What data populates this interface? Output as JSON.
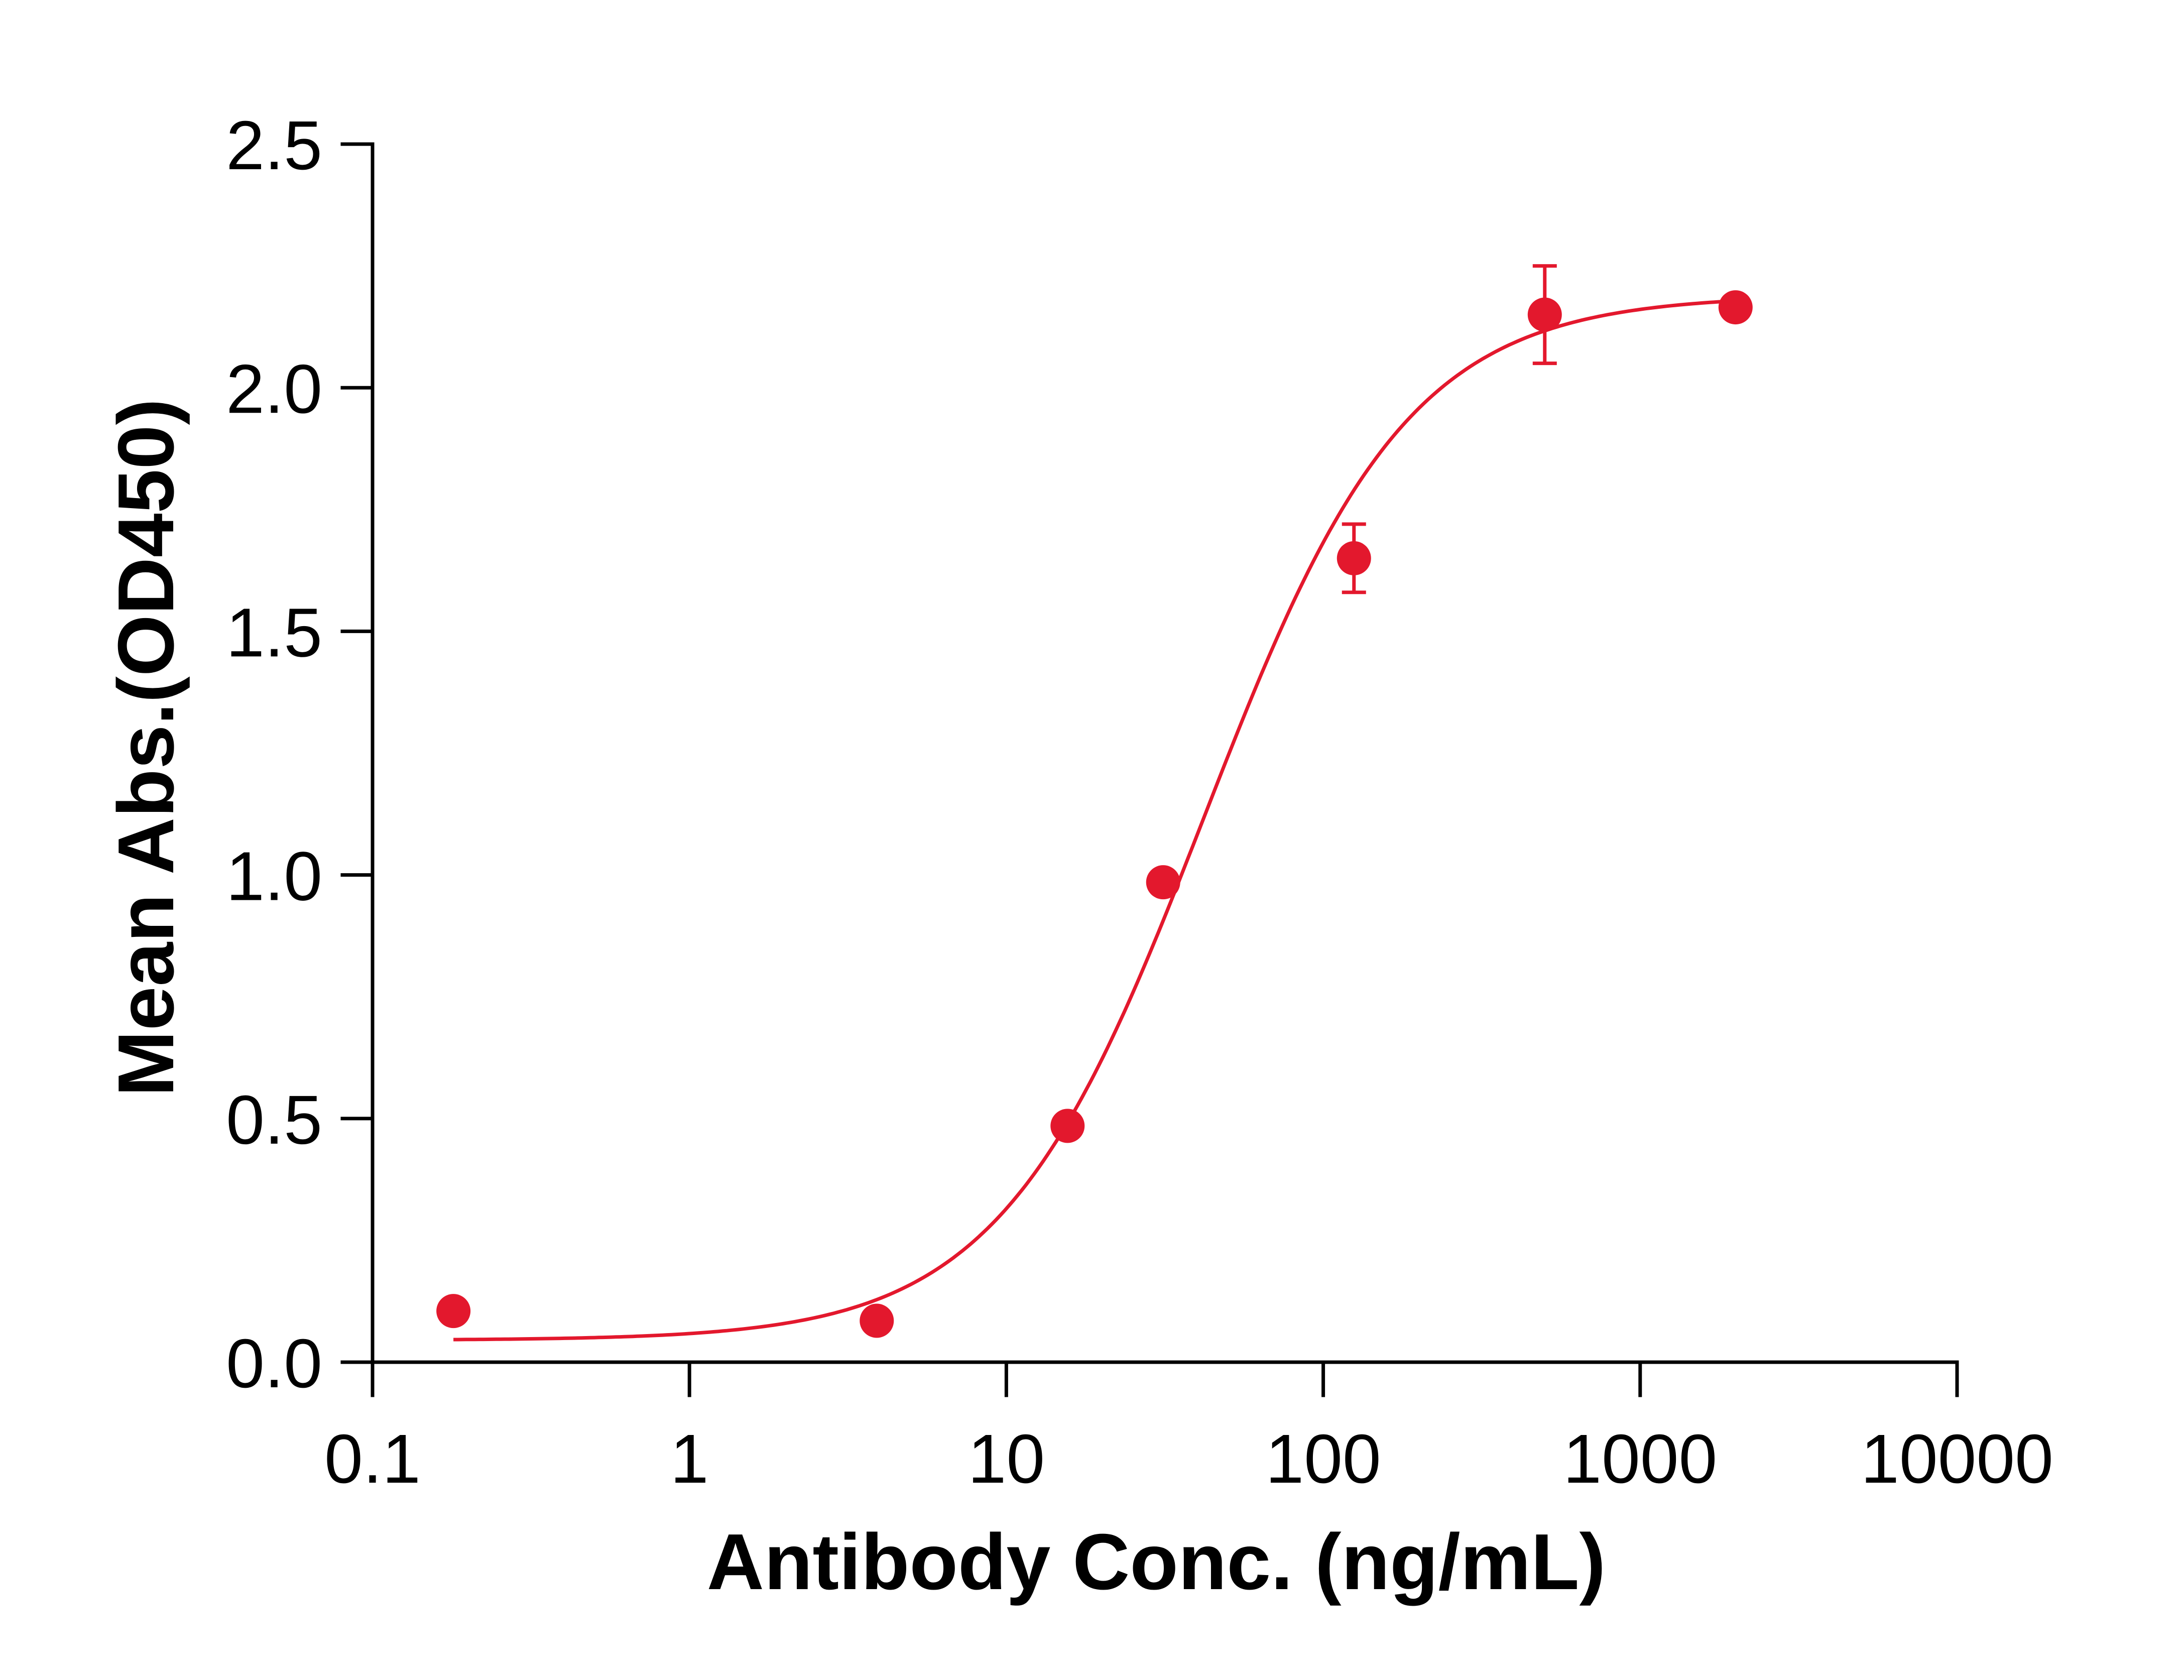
{
  "chart_data": {
    "type": "scatter",
    "xlabel": "Antibody Conc. (ng/mL)",
    "ylabel": "Mean Abs.(OD450)",
    "xscale": "log",
    "xlim": [
      0.1,
      10000
    ],
    "ylim": [
      0,
      2.5
    ],
    "x_ticks": [
      0.1,
      1,
      10,
      100,
      1000,
      10000
    ],
    "x_tick_labels": [
      "0.1",
      "1",
      "10",
      "100",
      "1000",
      "10000"
    ],
    "y_ticks": [
      0,
      0.5,
      1.0,
      1.5,
      2.0,
      2.5
    ],
    "y_tick_labels": [
      "0.0",
      "0.5",
      "1.0",
      "1.5",
      "2.0",
      "2.5"
    ],
    "grid": false,
    "legend": "none",
    "series": [
      {
        "color": "#e3182d",
        "points": [
          {
            "x": 0.18,
            "y": 0.105,
            "err": 0.01
          },
          {
            "x": 3.9,
            "y": 0.085,
            "err": 0.01
          },
          {
            "x": 15.6,
            "y": 0.485,
            "err": 0.015
          },
          {
            "x": 31.25,
            "y": 0.985,
            "err": 0.02
          },
          {
            "x": 125,
            "y": 1.65,
            "err": 0.07
          },
          {
            "x": 500,
            "y": 2.15,
            "err": 0.1
          },
          {
            "x": 2000,
            "y": 2.165,
            "err": 0.01
          }
        ],
        "fit": {
          "model": "4PL",
          "bottom": 0.045,
          "top": 2.19,
          "ec50": 42,
          "hill": 1.35,
          "x_range": [
            0.18,
            2000
          ]
        }
      }
    ]
  }
}
